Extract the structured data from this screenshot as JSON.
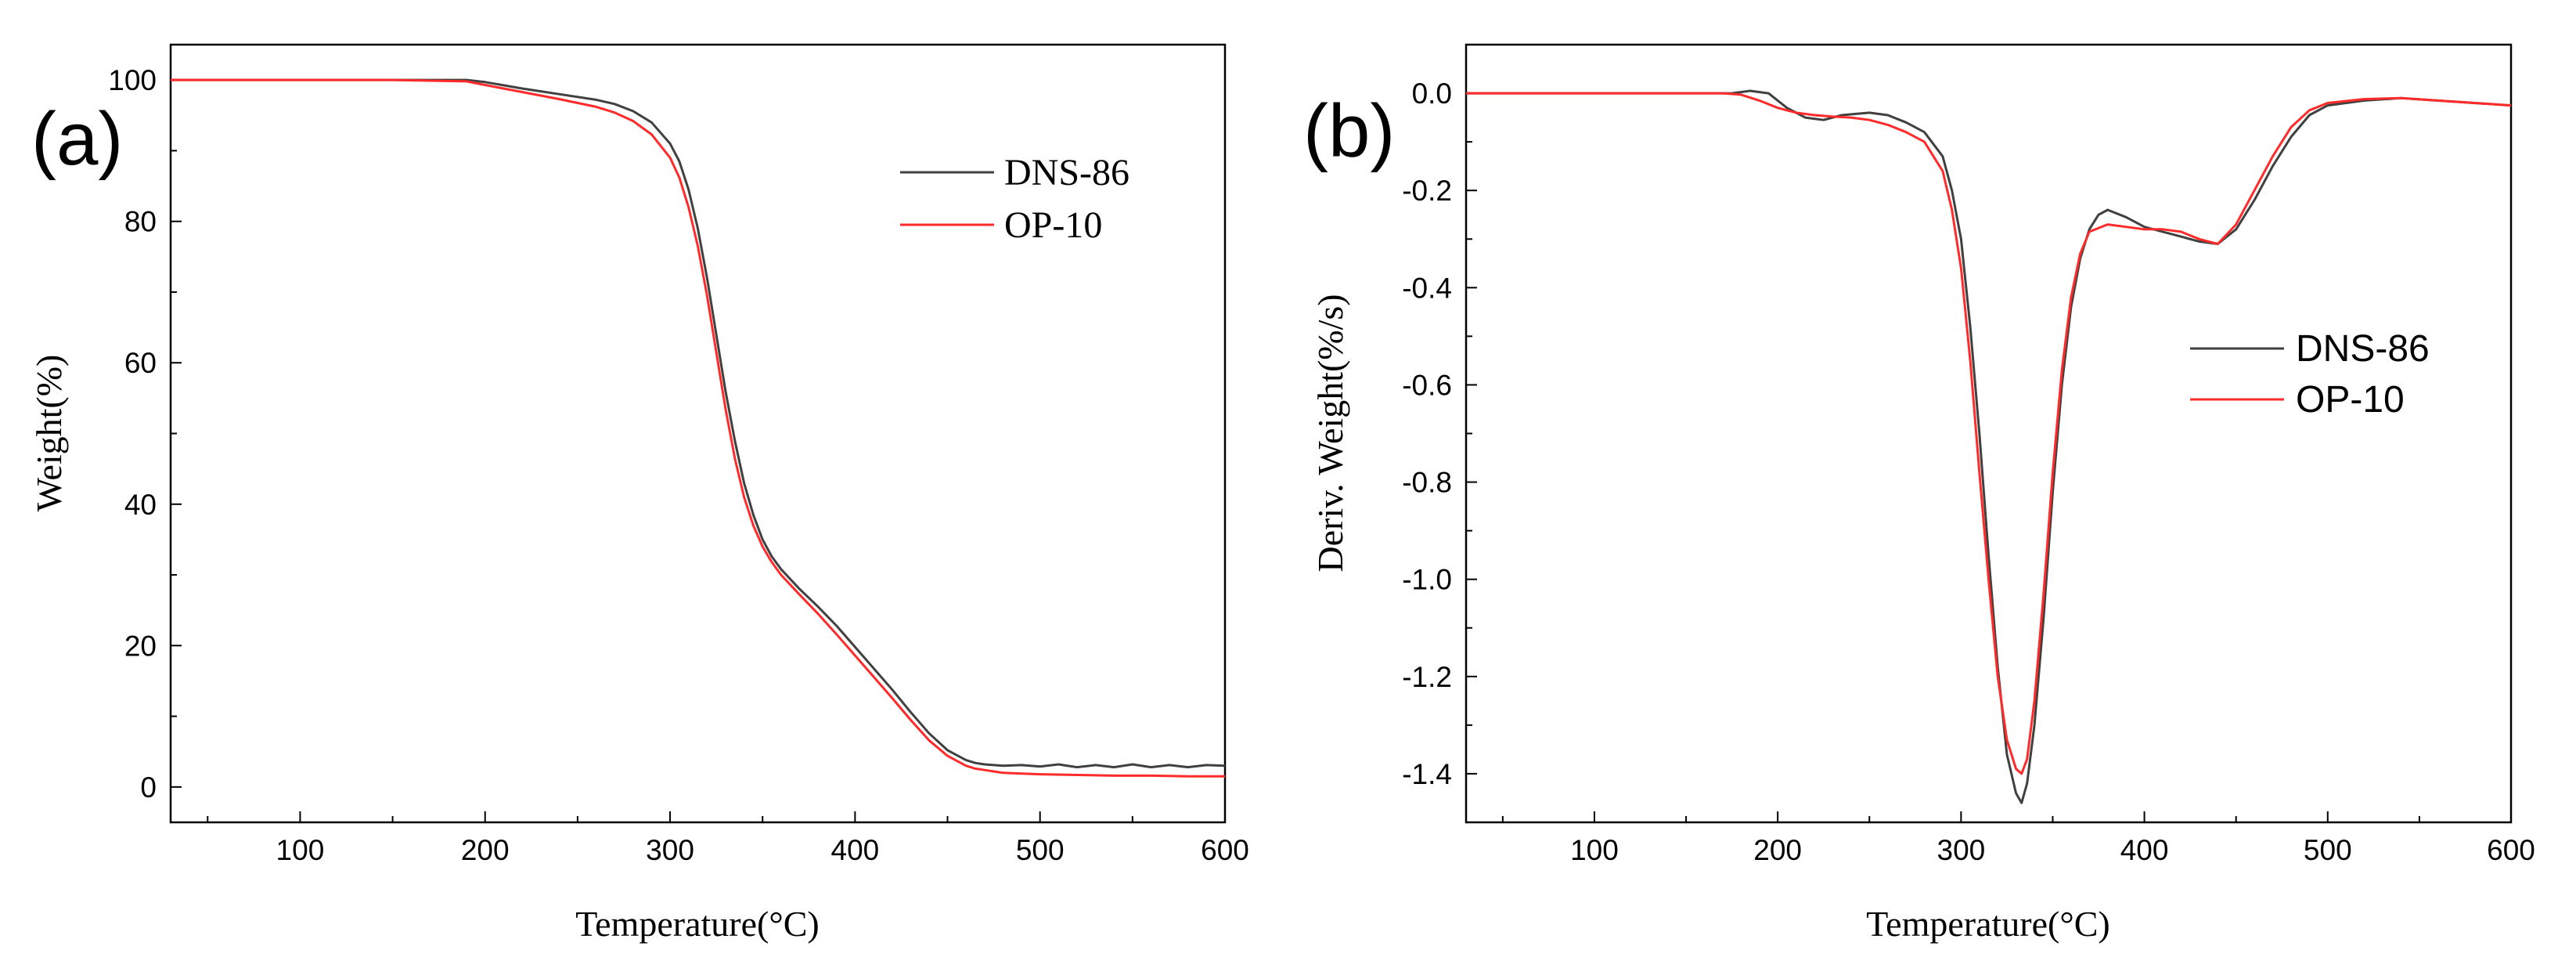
{
  "chart_data": [
    {
      "panel_label": "(a)",
      "type": "line",
      "title": "",
      "xlabel": "Temperature(°C)",
      "ylabel": "Weight(%)",
      "xlim": [
        30,
        600
      ],
      "ylim": [
        -5,
        105
      ],
      "xticks": [
        100,
        200,
        300,
        400,
        500,
        600
      ],
      "yticks": [
        0,
        20,
        40,
        60,
        80,
        100
      ],
      "grid": false,
      "legend_position": "upper-right",
      "series": [
        {
          "name": "DNS-86",
          "color": "#404040",
          "x": [
            30,
            100,
            150,
            190,
            200,
            220,
            240,
            260,
            270,
            280,
            290,
            300,
            305,
            310,
            315,
            320,
            325,
            330,
            335,
            340,
            345,
            350,
            355,
            360,
            365,
            370,
            380,
            390,
            400,
            410,
            420,
            430,
            440,
            450,
            460,
            465,
            470,
            475,
            480,
            490,
            500,
            510,
            520,
            530,
            540,
            550,
            560,
            570,
            580,
            590,
            600
          ],
          "values": [
            100,
            100,
            100,
            100,
            99.7,
            98.8,
            98,
            97.2,
            96.6,
            95.6,
            94,
            91,
            88.5,
            84.5,
            79,
            72,
            64,
            56,
            49,
            43,
            38.5,
            35,
            32.6,
            30.8,
            29.4,
            28,
            25.5,
            22.8,
            19.8,
            16.8,
            13.8,
            10.6,
            7.6,
            5.2,
            3.8,
            3.4,
            3.2,
            3.1,
            3.0,
            3.1,
            2.9,
            3.2,
            2.8,
            3.1,
            2.8,
            3.2,
            2.8,
            3.1,
            2.8,
            3.1,
            3.0
          ]
        },
        {
          "name": "OP-10",
          "color": "#ff2a2a",
          "x": [
            30,
            100,
            150,
            190,
            200,
            220,
            240,
            260,
            270,
            280,
            290,
            300,
            305,
            310,
            315,
            320,
            325,
            330,
            335,
            340,
            345,
            350,
            355,
            360,
            365,
            370,
            380,
            390,
            400,
            410,
            420,
            430,
            440,
            450,
            460,
            465,
            470,
            475,
            480,
            490,
            500,
            520,
            540,
            560,
            580,
            600
          ],
          "values": [
            100,
            100,
            100,
            99.8,
            99.3,
            98.3,
            97.3,
            96.2,
            95.4,
            94.2,
            92.3,
            89,
            86.2,
            82,
            76.5,
            69.5,
            61.5,
            53.5,
            46.5,
            41,
            37,
            34,
            31.8,
            30,
            28.6,
            27.2,
            24.5,
            21.6,
            18.6,
            15.6,
            12.6,
            9.5,
            6.6,
            4.4,
            3.0,
            2.6,
            2.4,
            2.2,
            2.0,
            1.9,
            1.8,
            1.7,
            1.6,
            1.6,
            1.5,
            1.5
          ]
        }
      ]
    },
    {
      "panel_label": "(b)",
      "type": "line",
      "title": "",
      "xlabel": "Temperature(°C)",
      "ylabel": "Deriv. Weight(%/s)",
      "xlim": [
        30,
        600
      ],
      "ylim": [
        -1.5,
        0.1
      ],
      "xticks": [
        100,
        200,
        300,
        400,
        500,
        600
      ],
      "yticks": [
        0.0,
        -0.2,
        -0.4,
        -0.6,
        -0.8,
        -1.0,
        -1.2,
        -1.4
      ],
      "ytick_labels": [
        "0.0",
        "-0.2",
        "-0.4",
        "-0.6",
        "-0.8",
        "-1.0",
        "-1.2",
        "-1.4"
      ],
      "grid": false,
      "legend_position": "right",
      "series": [
        {
          "name": "DNS-86",
          "color": "#404040",
          "x": [
            30,
            100,
            150,
            175,
            185,
            195,
            205,
            215,
            225,
            235,
            250,
            260,
            270,
            280,
            290,
            295,
            300,
            305,
            310,
            315,
            320,
            325,
            330,
            333,
            336,
            340,
            345,
            350,
            355,
            360,
            365,
            370,
            375,
            380,
            390,
            400,
            410,
            420,
            430,
            440,
            450,
            460,
            470,
            480,
            490,
            500,
            520,
            540,
            560,
            580,
            600
          ],
          "values": [
            0,
            0,
            0,
            0.0,
            0.005,
            0.0,
            -0.03,
            -0.05,
            -0.055,
            -0.045,
            -0.04,
            -0.045,
            -0.06,
            -0.08,
            -0.13,
            -0.2,
            -0.3,
            -0.48,
            -0.7,
            -0.95,
            -1.18,
            -1.36,
            -1.44,
            -1.46,
            -1.42,
            -1.3,
            -1.08,
            -0.82,
            -0.6,
            -0.44,
            -0.34,
            -0.28,
            -0.25,
            -0.24,
            -0.255,
            -0.275,
            -0.285,
            -0.295,
            -0.305,
            -0.31,
            -0.28,
            -0.22,
            -0.15,
            -0.09,
            -0.045,
            -0.025,
            -0.015,
            -0.01,
            -0.015,
            -0.02,
            -0.025
          ]
        },
        {
          "name": "OP-10",
          "color": "#ff2a2a",
          "x": [
            30,
            100,
            150,
            170,
            180,
            190,
            200,
            210,
            220,
            230,
            240,
            250,
            260,
            270,
            280,
            290,
            295,
            300,
            305,
            310,
            315,
            320,
            325,
            330,
            333,
            336,
            340,
            345,
            350,
            355,
            360,
            365,
            370,
            380,
            390,
            400,
            410,
            420,
            430,
            440,
            450,
            460,
            470,
            480,
            490,
            500,
            520,
            540,
            560,
            580,
            600
          ],
          "values": [
            0,
            0,
            0,
            0,
            -0.003,
            -0.015,
            -0.03,
            -0.04,
            -0.045,
            -0.048,
            -0.05,
            -0.055,
            -0.065,
            -0.08,
            -0.1,
            -0.16,
            -0.24,
            -0.36,
            -0.55,
            -0.78,
            -1.0,
            -1.2,
            -1.33,
            -1.39,
            -1.4,
            -1.37,
            -1.25,
            -1.03,
            -0.78,
            -0.57,
            -0.42,
            -0.33,
            -0.285,
            -0.27,
            -0.275,
            -0.28,
            -0.28,
            -0.285,
            -0.3,
            -0.31,
            -0.27,
            -0.2,
            -0.13,
            -0.07,
            -0.035,
            -0.02,
            -0.012,
            -0.01,
            -0.015,
            -0.02,
            -0.025
          ]
        }
      ]
    }
  ]
}
